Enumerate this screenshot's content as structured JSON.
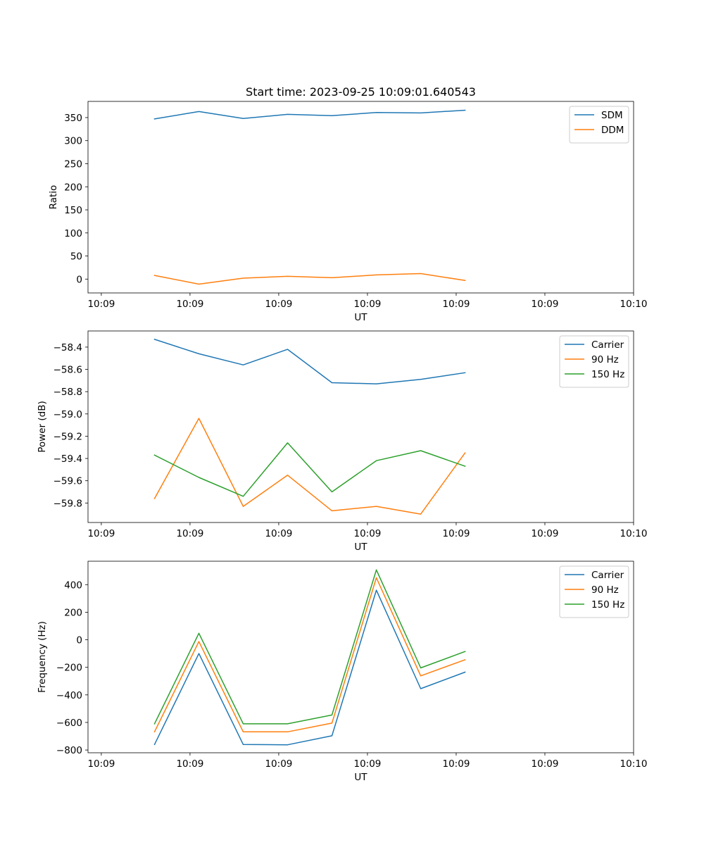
{
  "figure_title": "Start time: 2023-09-25 10:09:01.640543",
  "colors": {
    "c0": "#1f77b4",
    "c1": "#ff7f0e",
    "c2": "#2ca02c",
    "axis": "#000000"
  },
  "chart_data": [
    {
      "type": "line",
      "title": "Start time: 2023-09-25 10:09:01.640543",
      "xlabel": "UT",
      "ylabel": "Ratio",
      "x": [
        1.5,
        2.5,
        3.5,
        4.5,
        5.5,
        6.5,
        7.5,
        8.5
      ],
      "xlim": [
        0,
        12.3
      ],
      "xticks": [
        0.3,
        2.3,
        4.3,
        6.3,
        8.3,
        10.3,
        12.3
      ],
      "xtick_labels": [
        "10:09",
        "10:09",
        "10:09",
        "10:09",
        "10:09",
        "10:09",
        "10:10"
      ],
      "ylim": [
        -30,
        385
      ],
      "yticks": [
        0,
        50,
        100,
        150,
        200,
        250,
        300,
        350
      ],
      "ytick_labels": [
        "0",
        "50",
        "100",
        "150",
        "200",
        "250",
        "300",
        "350"
      ],
      "legend": "top-right",
      "series": [
        {
          "name": "SDM",
          "color": "#1f77b4",
          "values": [
            347,
            363,
            348,
            357,
            354,
            361,
            360,
            366
          ]
        },
        {
          "name": "DDM",
          "color": "#ff7f0e",
          "values": [
            8,
            -11,
            2,
            6,
            3,
            9,
            12,
            -3
          ]
        }
      ]
    },
    {
      "type": "line",
      "title": "",
      "xlabel": "UT",
      "ylabel": "Power (dB)",
      "x": [
        1.5,
        2.5,
        3.5,
        4.5,
        5.5,
        6.5,
        7.5,
        8.5
      ],
      "xlim": [
        0,
        12.3
      ],
      "xticks": [
        0.3,
        2.3,
        4.3,
        6.3,
        8.3,
        10.3,
        12.3
      ],
      "xtick_labels": [
        "10:09",
        "10:09",
        "10:09",
        "10:09",
        "10:09",
        "10:09",
        "10:10"
      ],
      "ylim": [
        -59.975,
        -58.255
      ],
      "yticks": [
        -58.4,
        -58.6,
        -58.8,
        -59.0,
        -59.2,
        -59.4,
        -59.6,
        -59.8
      ],
      "ytick_labels": [
        "−58.4",
        "−58.6",
        "−58.8",
        "−59.0",
        "−59.2",
        "−59.4",
        "−59.6",
        "−59.8"
      ],
      "legend": "top-right",
      "series": [
        {
          "name": "Carrier",
          "color": "#1f77b4",
          "values": [
            -58.33,
            -58.46,
            -58.56,
            -58.42,
            -58.72,
            -58.73,
            -58.69,
            -58.63
          ]
        },
        {
          "name": "90 Hz",
          "color": "#ff7f0e",
          "values": [
            -59.76,
            -59.04,
            -59.83,
            -59.55,
            -59.87,
            -59.83,
            -59.9,
            -59.35
          ]
        },
        {
          "name": "150 Hz",
          "color": "#2ca02c",
          "values": [
            -59.37,
            -59.57,
            -59.74,
            -59.26,
            -59.7,
            -59.42,
            -59.33,
            -59.47
          ]
        }
      ]
    },
    {
      "type": "line",
      "title": "",
      "xlabel": "UT",
      "ylabel": "Frequency (Hz)",
      "x": [
        1.5,
        2.5,
        3.5,
        4.5,
        5.5,
        6.5,
        7.5,
        8.5
      ],
      "xlim": [
        0,
        12.3
      ],
      "xticks": [
        0.3,
        2.3,
        4.3,
        6.3,
        8.3,
        10.3,
        12.3
      ],
      "xtick_labels": [
        "10:09",
        "10:09",
        "10:09",
        "10:09",
        "10:09",
        "10:09",
        "10:10"
      ],
      "ylim": [
        -820,
        570
      ],
      "yticks": [
        400,
        200,
        0,
        -200,
        -400,
        -600,
        -800
      ],
      "ytick_labels": [
        "400",
        "200",
        "0",
        "−200",
        "−400",
        "−600",
        "−800"
      ],
      "legend": "top-right",
      "series": [
        {
          "name": "Carrier",
          "color": "#1f77b4",
          "values": [
            -760,
            -100,
            -760,
            -762,
            -697,
            360,
            -355,
            -235
          ]
        },
        {
          "name": "90 Hz",
          "color": "#ff7f0e",
          "values": [
            -668,
            -13,
            -668,
            -668,
            -605,
            450,
            -262,
            -145
          ]
        },
        {
          "name": "150 Hz",
          "color": "#2ca02c",
          "values": [
            -610,
            47,
            -610,
            -610,
            -546,
            507,
            -204,
            -85
          ]
        }
      ]
    }
  ]
}
